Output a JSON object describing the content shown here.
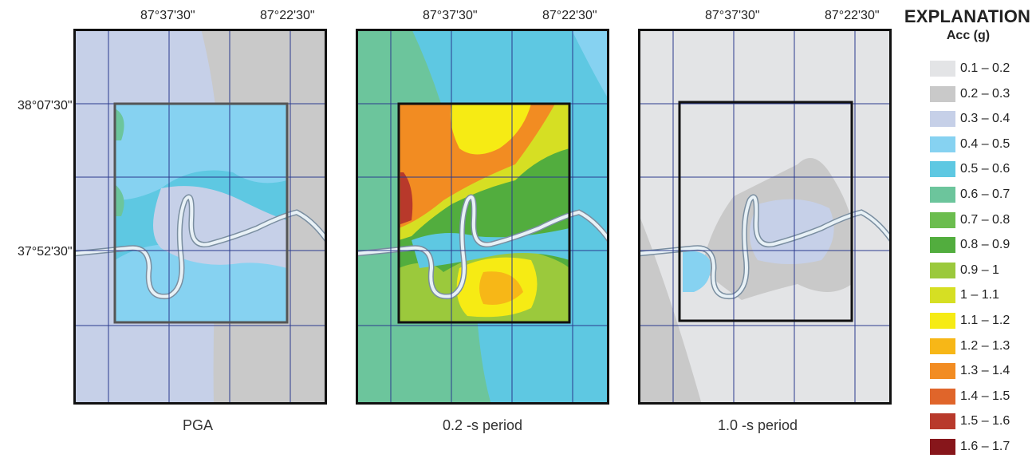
{
  "longitude_labels": [
    "87°37'30\"",
    "87°22'30\""
  ],
  "latitude_labels": [
    "38°07'30\"",
    "37°52'30\""
  ],
  "panels": [
    {
      "caption": "PGA"
    },
    {
      "caption": "0.2 -s period"
    },
    {
      "caption": "1.0 -s period"
    }
  ],
  "legend": {
    "title": "EXPLANATION",
    "subtitle": "Acc (g)",
    "classes": [
      {
        "label": "0.1 – 0.2",
        "color": "#e3e4e6"
      },
      {
        "label": "0.2 – 0.3",
        "color": "#c9c9c9"
      },
      {
        "label": "0.3 – 0.4",
        "color": "#c6d0e8"
      },
      {
        "label": "0.4 – 0.5",
        "color": "#86d2f1"
      },
      {
        "label": "0.5 – 0.6",
        "color": "#5ec8e2"
      },
      {
        "label": "0.6 – 0.7",
        "color": "#6cc59c"
      },
      {
        "label": "0.7 – 0.8",
        "color": "#6bbd4e"
      },
      {
        "label": "0.8 – 0.9",
        "color": "#52ad3e"
      },
      {
        "label": "0.9 – 1",
        "color": "#9bc93c"
      },
      {
        "label": "1 – 1.1",
        "color": "#d6df23"
      },
      {
        "label": "1.1 – 1.2",
        "color": "#f6eb14"
      },
      {
        "label": "1.2 – 1.3",
        "color": "#f7b717"
      },
      {
        "label": "1.3 – 1.4",
        "color": "#f28c22"
      },
      {
        "label": "1.4 – 1.5",
        "color": "#e0652a"
      },
      {
        "label": "1.5 – 1.6",
        "color": "#b8392b"
      },
      {
        "label": "1.6 – 1.7",
        "color": "#87161b"
      }
    ]
  }
}
